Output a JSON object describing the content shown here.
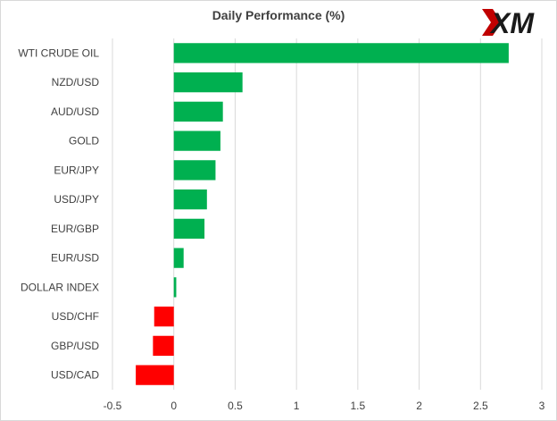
{
  "chart_data": {
    "type": "bar",
    "orientation": "horizontal",
    "title": "Daily Performance  (%)",
    "xlabel": "",
    "ylabel": "",
    "xlim": [
      -0.5,
      3
    ],
    "x_ticks": [
      "-0.5",
      "0",
      "0.5",
      "1",
      "1.5",
      "2",
      "2.5",
      "3"
    ],
    "grid": "vertical",
    "categories": [
      "WTI CRUDE OIL",
      "NZD/USD",
      "AUD/USD",
      "GOLD",
      "EUR/JPY",
      "USD/JPY",
      "EUR/GBP",
      "EUR/USD",
      "DOLLAR INDEX",
      "USD/CHF",
      "GBP/USD",
      "USD/CAD"
    ],
    "values": [
      2.73,
      0.56,
      0.4,
      0.38,
      0.34,
      0.27,
      0.25,
      0.08,
      0.02,
      -0.16,
      -0.17,
      -0.31
    ],
    "positive_color": "#00b050",
    "negative_color": "#ff0000"
  },
  "logo": {
    "text": "XM",
    "accent_color": "#c00000",
    "text_color": "#1a1a1a"
  }
}
